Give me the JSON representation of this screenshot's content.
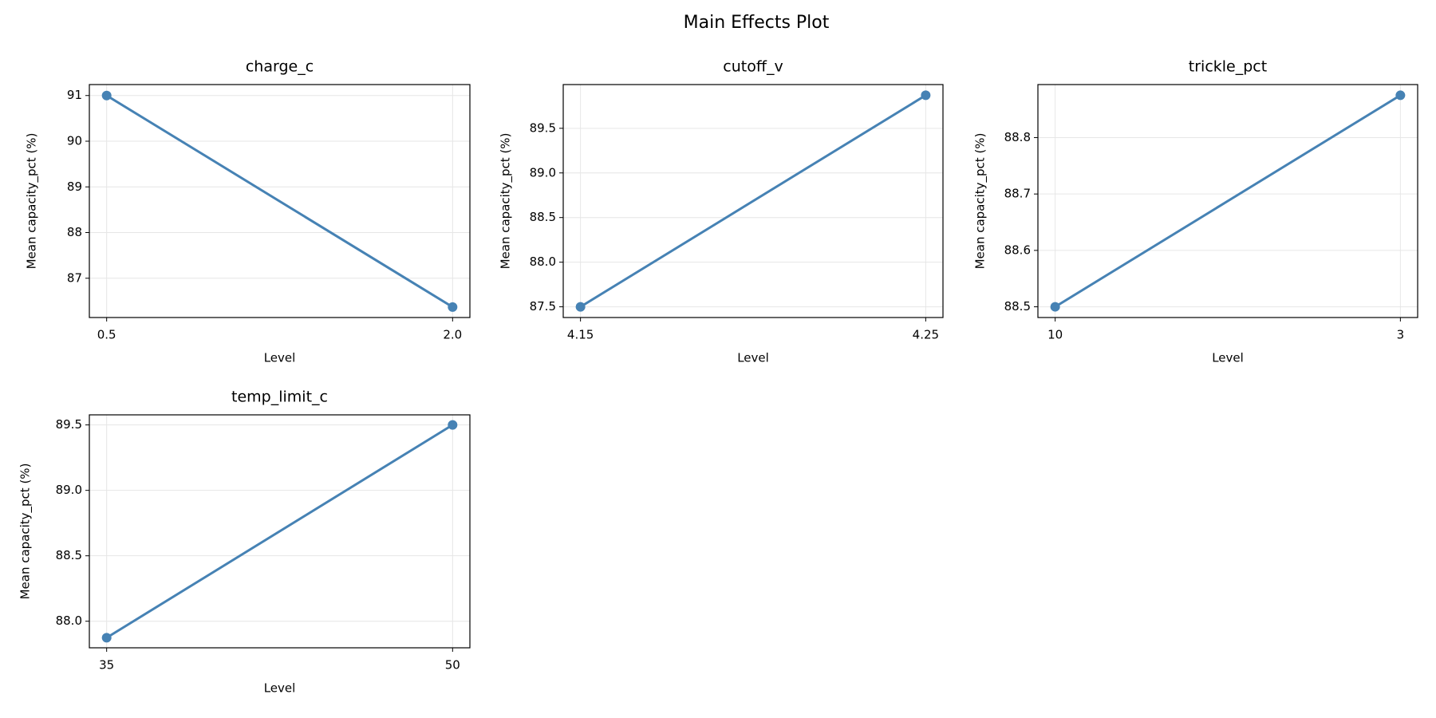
{
  "title": "Main Effects Plot",
  "chart_data": [
    {
      "type": "line",
      "title": "charge_c",
      "xlabel": "Level",
      "ylabel": "Mean capacity_pct (%)",
      "categories": [
        "0.5",
        "2.0"
      ],
      "values": [
        91.0,
        86.37
      ],
      "color": "#4682b4",
      "ylim": [
        86.14,
        91.24
      ],
      "yticks": [
        87,
        88,
        89,
        90,
        91
      ],
      "grid": true
    },
    {
      "type": "line",
      "title": "cutoff_v",
      "xlabel": "Level",
      "ylabel": "Mean capacity_pct (%)",
      "categories": [
        "4.15",
        "4.25"
      ],
      "values": [
        87.5,
        89.87
      ],
      "color": "#4682b4",
      "ylim": [
        87.38,
        89.99
      ],
      "yticks": [
        87.5,
        {
          "value": 88,
          "label": "88.0"
        },
        88.5,
        {
          "value": 89,
          "label": "89.0"
        },
        89.5
      ],
      "grid": true
    },
    {
      "type": "line",
      "title": "trickle_pct",
      "xlabel": "Level",
      "ylabel": "Mean capacity_pct (%)",
      "categories": [
        "10",
        "3"
      ],
      "values": [
        88.5,
        88.875
      ],
      "color": "#4682b4",
      "ylim": [
        88.481,
        88.894
      ],
      "yticks": [
        88.5,
        88.6,
        88.7,
        88.8
      ],
      "grid": true
    },
    {
      "type": "line",
      "title": "temp_limit_c",
      "xlabel": "Level",
      "ylabel": "Mean capacity_pct (%)",
      "categories": [
        "35",
        "50"
      ],
      "values": [
        87.874,
        89.5
      ],
      "color": "#4682b4",
      "ylim": [
        87.797,
        89.577
      ],
      "yticks": [
        {
          "value": 88,
          "label": "88.0"
        },
        88.5,
        {
          "value": 89,
          "label": "89.0"
        },
        89.5
      ],
      "grid": true
    }
  ]
}
